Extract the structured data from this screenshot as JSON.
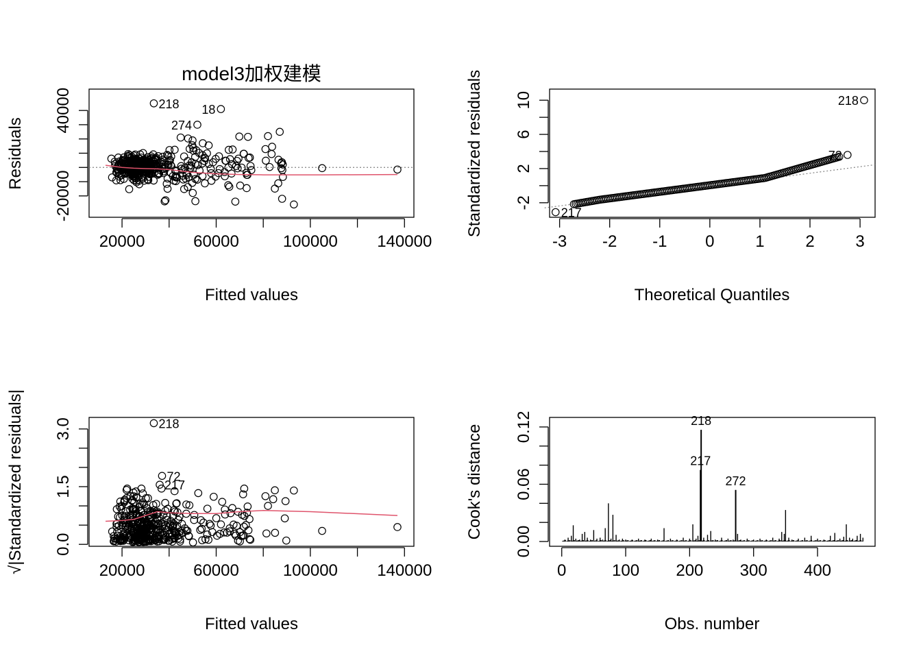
{
  "colors": {
    "axis": "#000000",
    "points": "#000000",
    "smooth": "#DF536B",
    "refline": "#808080"
  },
  "chart_data": [
    {
      "type": "scatter",
      "panel": "residuals-vs-fitted",
      "title": "model3加权建模",
      "xlabel": "Fitted values",
      "ylabel": "Residuals",
      "xlim": [
        6000,
        144000
      ],
      "ylim": [
        -35000,
        55000
      ],
      "xticks": [
        20000,
        40000,
        60000,
        80000,
        100000,
        120000,
        140000
      ],
      "xtick_labels": [
        "20000",
        "60000",
        "100000",
        "140000"
      ],
      "xtick_label_values": [
        20000,
        60000,
        100000,
        140000
      ],
      "yticks": [
        -20000,
        -10000,
        0,
        10000,
        20000,
        30000,
        40000
      ],
      "ytick_labels": [
        "-20000",
        "40000"
      ],
      "ytick_label_values": [
        -20000,
        40000
      ],
      "labeled_points": [
        {
          "label": "218",
          "x": 33500,
          "y": 45000
        },
        {
          "label": "18",
          "x": 62000,
          "y": 41000
        },
        {
          "label": "274",
          "x": 52000,
          "y": 30000
        }
      ],
      "smooth": {
        "x": [
          13000,
          20000,
          25000,
          30000,
          35000,
          40000,
          50000,
          60000,
          70000,
          80000,
          105000,
          137000
        ],
        "y": [
          1500,
          0,
          -500,
          -800,
          -1000,
          -1500,
          -3500,
          -4500,
          -5000,
          -5200,
          -5200,
          -5000
        ]
      },
      "refline_y": 0
    },
    {
      "type": "scatter",
      "panel": "normal-qq",
      "xlabel": "Theoretical Quantiles",
      "ylabel": "Standardized residuals",
      "xlim": [
        -3.2,
        3.3
      ],
      "ylim": [
        -3.7,
        11.3
      ],
      "xticks": [
        -3,
        -2,
        -1,
        0,
        1,
        2,
        3
      ],
      "xtick_labels": [
        "-3",
        "-2",
        "-1",
        "0",
        "1",
        "2",
        "3"
      ],
      "yticks": [
        -2,
        2,
        6,
        10
      ],
      "ytick_labels": [
        "-2",
        "2",
        "6",
        "10"
      ],
      "minor_yticks": [
        0,
        4,
        8
      ],
      "labeled_points": [
        {
          "label": "218",
          "x": 3.08,
          "y": 10.0
        },
        {
          "label": "72",
          "x": 2.75,
          "y": 3.6
        },
        {
          "label": "217",
          "x": -3.08,
          "y": -3.1
        }
      ],
      "refline": {
        "x": [
          -3.3,
          3.3
        ],
        "y": [
          -2.6,
          2.45
        ]
      }
    },
    {
      "type": "scatter",
      "panel": "scale-location",
      "xlabel": "Fitted values",
      "ylabel": "√|Standardized residuals|",
      "xlim": [
        6000,
        144000
      ],
      "ylim": [
        -0.05,
        3.3
      ],
      "xticks": [
        20000,
        40000,
        60000,
        80000,
        100000,
        120000,
        140000
      ],
      "xtick_labels": [
        "20000",
        "60000",
        "100000",
        "140000"
      ],
      "xtick_label_values": [
        20000,
        60000,
        100000,
        140000
      ],
      "yticks": [
        0.0,
        0.5,
        1.0,
        1.5,
        2.0,
        2.5,
        3.0
      ],
      "ytick_labels": [
        "0.0",
        "1.5",
        "3.0"
      ],
      "ytick_label_values": [
        0.0,
        1.5,
        3.0
      ],
      "labeled_points": [
        {
          "label": "218",
          "x": 33500,
          "y": 3.15
        },
        {
          "label": "72",
          "x": 37000,
          "y": 1.78
        },
        {
          "label": "217",
          "x": 36000,
          "y": 1.55
        }
      ],
      "smooth": {
        "x": [
          13000,
          20000,
          25000,
          30000,
          35000,
          40000,
          50000,
          60000,
          70000,
          80000,
          100000,
          137000
        ],
        "y": [
          0.6,
          0.62,
          0.65,
          0.75,
          0.85,
          0.82,
          0.8,
          0.8,
          0.85,
          0.88,
          0.85,
          0.75
        ]
      }
    },
    {
      "type": "bar",
      "panel": "cooks-distance",
      "xlabel": "Obs. number",
      "ylabel": "Cook's distance",
      "xlim": [
        -19,
        490
      ],
      "ylim": [
        -0.005,
        0.13
      ],
      "xticks": [
        0,
        100,
        200,
        300,
        400
      ],
      "xtick_labels": [
        "0",
        "100",
        "200",
        "300",
        "400"
      ],
      "yticks": [
        0.0,
        0.02,
        0.04,
        0.06,
        0.08,
        0.1,
        0.12
      ],
      "ytick_labels": [
        "0.00",
        "0.06",
        "0.12"
      ],
      "ytick_label_values": [
        0.0,
        0.06,
        0.12
      ],
      "labeled_bars": [
        {
          "label": "218",
          "x": 218,
          "y": 0.117
        },
        {
          "label": "217",
          "x": 217,
          "y": 0.075
        },
        {
          "label": "272",
          "x": 272,
          "y": 0.054
        }
      ],
      "bars": [
        [
          5,
          0.002
        ],
        [
          10,
          0.004
        ],
        [
          15,
          0.006
        ],
        [
          18,
          0.017
        ],
        [
          22,
          0.003
        ],
        [
          28,
          0.002
        ],
        [
          32,
          0.008
        ],
        [
          36,
          0.01
        ],
        [
          40,
          0.004
        ],
        [
          45,
          0.002
        ],
        [
          50,
          0.012
        ],
        [
          55,
          0.003
        ],
        [
          60,
          0.004
        ],
        [
          64,
          0.002
        ],
        [
          68,
          0.014
        ],
        [
          73,
          0.04
        ],
        [
          77,
          0.003
        ],
        [
          80,
          0.028
        ],
        [
          85,
          0.007
        ],
        [
          90,
          0.002
        ],
        [
          95,
          0.003
        ],
        [
          100,
          0.002
        ],
        [
          110,
          0.002
        ],
        [
          120,
          0.003
        ],
        [
          130,
          0.002
        ],
        [
          140,
          0.003
        ],
        [
          150,
          0.002
        ],
        [
          160,
          0.014
        ],
        [
          170,
          0.003
        ],
        [
          180,
          0.002
        ],
        [
          190,
          0.004
        ],
        [
          200,
          0.003
        ],
        [
          205,
          0.018
        ],
        [
          210,
          0.003
        ],
        [
          213,
          0.006
        ],
        [
          217,
          0.075
        ],
        [
          218,
          0.117
        ],
        [
          222,
          0.004
        ],
        [
          228,
          0.007
        ],
        [
          233,
          0.011
        ],
        [
          240,
          0.002
        ],
        [
          250,
          0.004
        ],
        [
          260,
          0.003
        ],
        [
          268,
          0.002
        ],
        [
          272,
          0.054
        ],
        [
          275,
          0.008
        ],
        [
          280,
          0.002
        ],
        [
          290,
          0.003
        ],
        [
          300,
          0.002
        ],
        [
          310,
          0.003
        ],
        [
          320,
          0.002
        ],
        [
          330,
          0.004
        ],
        [
          340,
          0.003
        ],
        [
          344,
          0.01
        ],
        [
          348,
          0.008
        ],
        [
          350,
          0.033
        ],
        [
          355,
          0.004
        ],
        [
          360,
          0.002
        ],
        [
          370,
          0.003
        ],
        [
          380,
          0.004
        ],
        [
          390,
          0.006
        ],
        [
          400,
          0.003
        ],
        [
          410,
          0.002
        ],
        [
          420,
          0.006
        ],
        [
          427,
          0.009
        ],
        [
          435,
          0.003
        ],
        [
          441,
          0.005
        ],
        [
          445,
          0.018
        ],
        [
          450,
          0.004
        ],
        [
          455,
          0.003
        ],
        [
          462,
          0.006
        ],
        [
          467,
          0.008
        ],
        [
          471,
          0.004
        ]
      ]
    }
  ]
}
